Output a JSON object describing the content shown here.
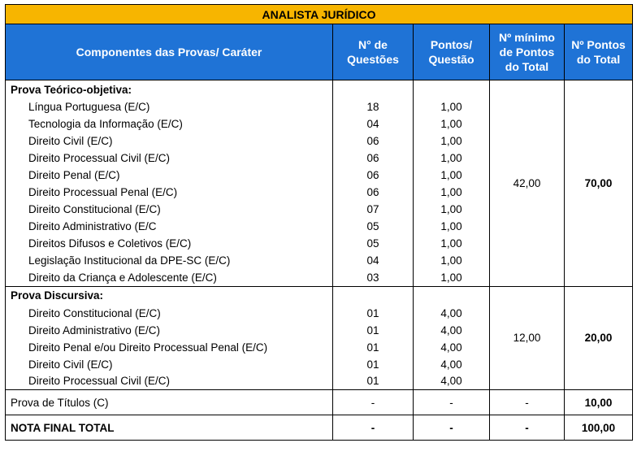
{
  "title": "ANALISTA JURÍDICO",
  "headers": {
    "components": "Componentes das Provas/ Caráter",
    "questions": [
      "N° de",
      "Questões"
    ],
    "points": [
      "Pontos/",
      "Questão"
    ],
    "minimum": [
      "Nº mínimo",
      "de Pontos",
      "do Total"
    ],
    "total": [
      "Nº Pontos",
      "do Total"
    ]
  },
  "section1": {
    "title": "Prova Teórico-objetiva:",
    "minimum": "42,00",
    "total": "70,00",
    "items": [
      {
        "name": "Língua Portuguesa (E/C)",
        "questions": "18",
        "points": "1,00"
      },
      {
        "name": "Tecnologia da Informação (E/C)",
        "questions": "04",
        "points": "1,00"
      },
      {
        "name": "Direito Civil (E/C)",
        "questions": "06",
        "points": "1,00"
      },
      {
        "name": "Direito Processual Civil (E/C)",
        "questions": "06",
        "points": "1,00"
      },
      {
        "name": "Direito Penal (E/C)",
        "questions": "06",
        "points": "1,00"
      },
      {
        "name": "Direito Processual Penal (E/C)",
        "questions": "06",
        "points": "1,00"
      },
      {
        "name": "Direito Constitucional (E/C)",
        "questions": "07",
        "points": "1,00"
      },
      {
        "name": "Direito Administrativo (E/C",
        "questions": "05",
        "points": "1,00"
      },
      {
        "name": "Direitos Difusos e Coletivos (E/C)",
        "questions": "05",
        "points": "1,00"
      },
      {
        "name": "Legislação Institucional da DPE-SC (E/C)",
        "questions": "04",
        "points": "1,00"
      },
      {
        "name": "Direito da Criança e Adolescente (E/C)",
        "questions": "03",
        "points": "1,00"
      }
    ]
  },
  "section2": {
    "title": "Prova Discursiva:",
    "minimum": "12,00",
    "total": "20,00",
    "items": [
      {
        "name": "Direito Constitucional (E/C)",
        "questions": "01",
        "points": "4,00"
      },
      {
        "name": "Direito Administrativo (E/C)",
        "questions": "01",
        "points": "4,00"
      },
      {
        "name": "Direito Penal e/ou Direito Processual Penal (E/C)",
        "questions": "01",
        "points": "4,00"
      },
      {
        "name": "Direito Civil (E/C)",
        "questions": "01",
        "points": "4,00"
      },
      {
        "name": "Direito Processual Civil (E/C)",
        "questions": "01",
        "points": "4,00"
      }
    ]
  },
  "titulos": {
    "name": "Prova de Títulos (C)",
    "questions": "-",
    "points": "-",
    "minimum": "-",
    "total": "10,00"
  },
  "final": {
    "name": "NOTA FINAL TOTAL",
    "questions": "-",
    "points": "-",
    "minimum": "-",
    "total": "100,00"
  }
}
